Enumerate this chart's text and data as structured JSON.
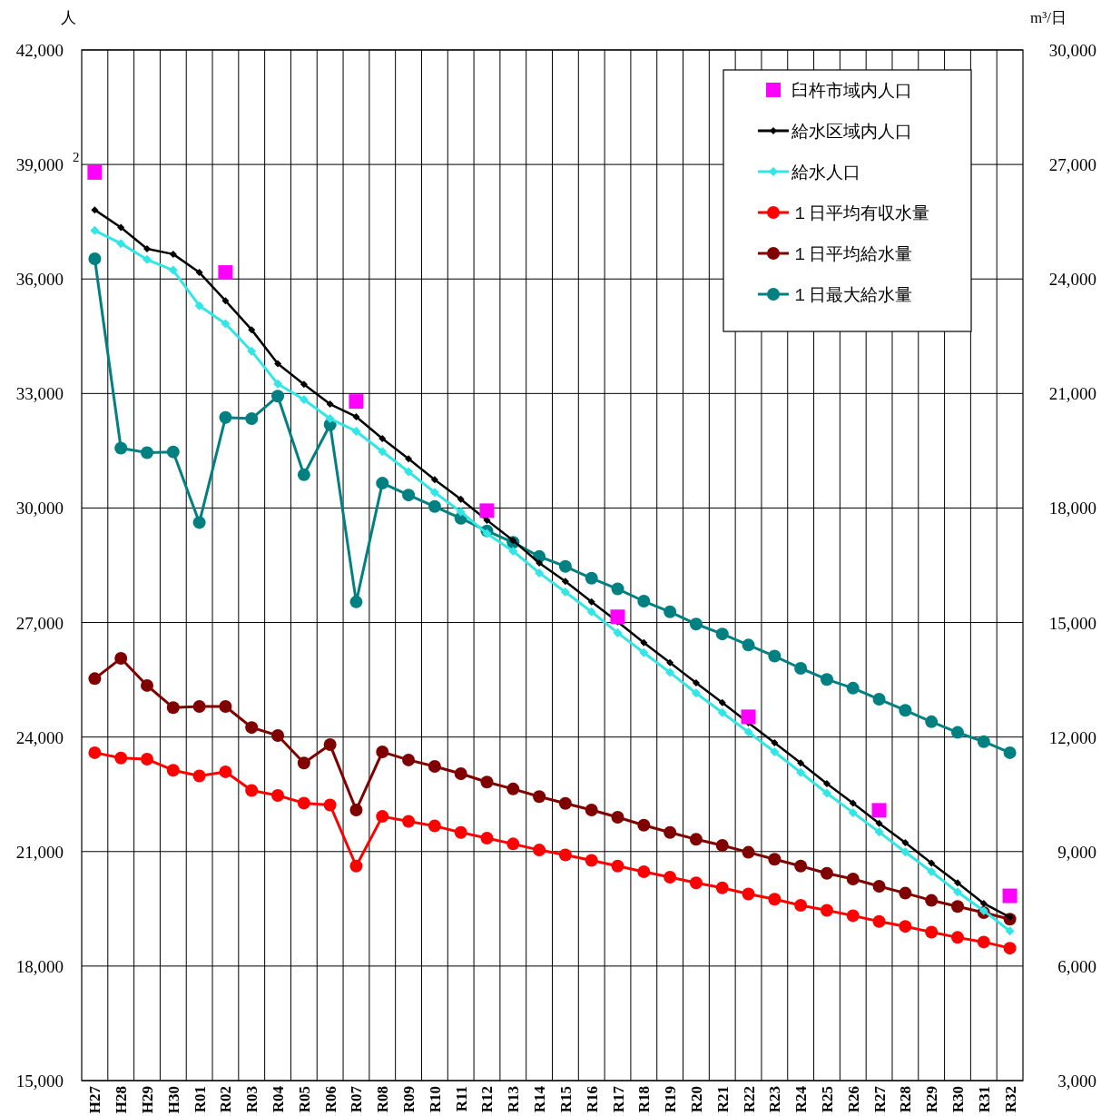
{
  "chart_data": {
    "type": "line",
    "ylabel": "人",
    "y2label": "m³/日",
    "annotations": [
      "2"
    ],
    "categories": [
      "H27",
      "H28",
      "H29",
      "H30",
      "R01",
      "R02",
      "R03",
      "R04",
      "R05",
      "R06",
      "R07",
      "R08",
      "R09",
      "R10",
      "R11",
      "R12",
      "R13",
      "R14",
      "R15",
      "R16",
      "R17",
      "R18",
      "R19",
      "R20",
      "R21",
      "R22",
      "R23",
      "R24",
      "R25",
      "R26",
      "R27",
      "R28",
      "R29",
      "R30",
      "R31",
      "R32"
    ],
    "ylim": [
      15000,
      42000
    ],
    "yticks": [
      {
        "value": 15000,
        "label": "15,000"
      },
      {
        "value": 18000,
        "label": "18,000"
      },
      {
        "value": 21000,
        "label": "21,000"
      },
      {
        "value": 24000,
        "label": "24,000"
      },
      {
        "value": 27000,
        "label": "27,000"
      },
      {
        "value": 30000,
        "label": "30,000"
      },
      {
        "value": 33000,
        "label": "33,000"
      },
      {
        "value": 36000,
        "label": "36,000"
      },
      {
        "value": 39000,
        "label": "39,000"
      },
      {
        "value": 42000,
        "label": "42,000"
      }
    ],
    "y2lim": [
      3000,
      30000
    ],
    "y2ticks": [
      {
        "value": 3000,
        "label": "3,000"
      },
      {
        "value": 6000,
        "label": "6,000"
      },
      {
        "value": 9000,
        "label": "9,000"
      },
      {
        "value": 12000,
        "label": "12,000"
      },
      {
        "value": 15000,
        "label": "15,000"
      },
      {
        "value": 18000,
        "label": "18,000"
      },
      {
        "value": 21000,
        "label": "21,000"
      },
      {
        "value": 24000,
        "label": "24,000"
      },
      {
        "value": 27000,
        "label": "27,000"
      },
      {
        "value": 30000,
        "label": "30,000"
      }
    ],
    "grid": true,
    "legend": "top right",
    "series": [
      {
        "name": "臼杵市域内人口",
        "type": "scatter",
        "marker": "square",
        "color": "#ff00ff",
        "values": [
          38790,
          null,
          null,
          null,
          null,
          36170,
          null,
          null,
          null,
          null,
          32790,
          null,
          null,
          null,
          null,
          29930,
          null,
          null,
          null,
          null,
          27150,
          null,
          null,
          null,
          null,
          24530,
          null,
          null,
          null,
          null,
          22080,
          null,
          null,
          null,
          null,
          19840
        ]
      },
      {
        "name": "給水区域内人口",
        "marker": "diamond",
        "color": "#000000",
        "values": [
          37810,
          37350,
          36790,
          36650,
          36170,
          35430,
          34670,
          33780,
          33240,
          32720,
          32390,
          31820,
          31290,
          30740,
          30230,
          29680,
          29150,
          28560,
          28080,
          27540,
          27020,
          26470,
          25950,
          25420,
          24900,
          24370,
          23850,
          23320,
          22780,
          22270,
          21740,
          21230,
          20700,
          20180,
          19640,
          19280
        ]
      },
      {
        "name": "給水人口",
        "marker": "diamond",
        "color": "#33e6e6",
        "values": [
          37270,
          36930,
          36510,
          36230,
          35300,
          34830,
          34110,
          33250,
          32840,
          32340,
          32010,
          31480,
          30950,
          30410,
          29900,
          29330,
          28870,
          28300,
          27800,
          27280,
          26730,
          26210,
          25690,
          25150,
          24640,
          24130,
          23610,
          23070,
          22530,
          22020,
          21510,
          20990,
          20470,
          19940,
          19450,
          18920
        ]
      },
      {
        "name": "１日平均有収水量",
        "marker": "circle",
        "color": "#ff0000",
        "axis": "y2",
        "values": [
          11590,
          11450,
          11420,
          11130,
          10980,
          11090,
          10600,
          10470,
          10270,
          10220,
          8620,
          9920,
          9790,
          9670,
          9500,
          9350,
          9200,
          9040,
          8910,
          8770,
          8620,
          8470,
          8330,
          8180,
          8050,
          7890,
          7750,
          7590,
          7460,
          7320,
          7170,
          7040,
          6890,
          6750,
          6630,
          6470
        ]
      },
      {
        "name": "１日平均給水量",
        "marker": "circle",
        "color": "#800000",
        "axis": "y2",
        "values": [
          13530,
          14060,
          13350,
          12770,
          12800,
          12800,
          12250,
          12040,
          11320,
          11800,
          10090,
          11610,
          11400,
          11230,
          11040,
          10820,
          10640,
          10440,
          10260,
          10090,
          9900,
          9690,
          9500,
          9320,
          9160,
          8980,
          8800,
          8620,
          8430,
          8280,
          8090,
          7910,
          7720,
          7560,
          7400,
          7230
        ]
      },
      {
        "name": "１日最大給水量",
        "marker": "circle",
        "color": "#008080",
        "axis": "y2",
        "values": [
          24530,
          19570,
          19450,
          19470,
          17620,
          20370,
          20340,
          20930,
          18870,
          20180,
          15540,
          18650,
          18340,
          18040,
          17730,
          17400,
          17100,
          16730,
          16470,
          16160,
          15880,
          15560,
          15280,
          14960,
          14700,
          14410,
          14120,
          13800,
          13510,
          13280,
          12990,
          12700,
          12400,
          12120,
          11880,
          11590
        ]
      }
    ]
  }
}
